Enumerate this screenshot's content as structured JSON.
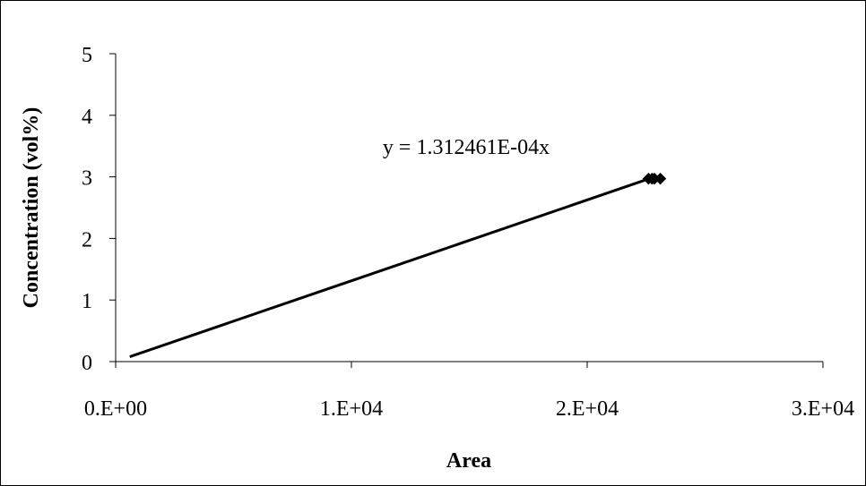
{
  "chart_data": {
    "type": "scatter",
    "title": "",
    "xlabel": "Area",
    "ylabel": "Concentration (vol%)",
    "xlim": [
      0,
      30000
    ],
    "ylim": [
      0,
      5
    ],
    "x_ticks": [
      {
        "value": 0,
        "label": "0.E+00"
      },
      {
        "value": 10000,
        "label": "1.E+04"
      },
      {
        "value": 20000,
        "label": "2.E+04"
      },
      {
        "value": 30000,
        "label": "3.E+04"
      }
    ],
    "y_ticks": [
      {
        "value": 0,
        "label": "0"
      },
      {
        "value": 1,
        "label": "1"
      },
      {
        "value": 2,
        "label": "2"
      },
      {
        "value": 3,
        "label": "3"
      },
      {
        "value": 4,
        "label": "4"
      },
      {
        "value": 5,
        "label": "5"
      }
    ],
    "series": [
      {
        "points": [
          {
            "x": 22600,
            "y": 2.97
          },
          {
            "x": 22750,
            "y": 2.97
          },
          {
            "x": 22850,
            "y": 2.97
          },
          {
            "x": 23100,
            "y": 2.97
          }
        ],
        "marker": "diamond",
        "color": "#000000"
      }
    ],
    "trendline": {
      "type": "linear",
      "slope": 0.0001312461,
      "intercept": 0,
      "x_range": [
        600,
        22650
      ],
      "equation_label": "y = 1.312461E-04x",
      "color": "#000000"
    },
    "grid": false,
    "legend": "none"
  }
}
